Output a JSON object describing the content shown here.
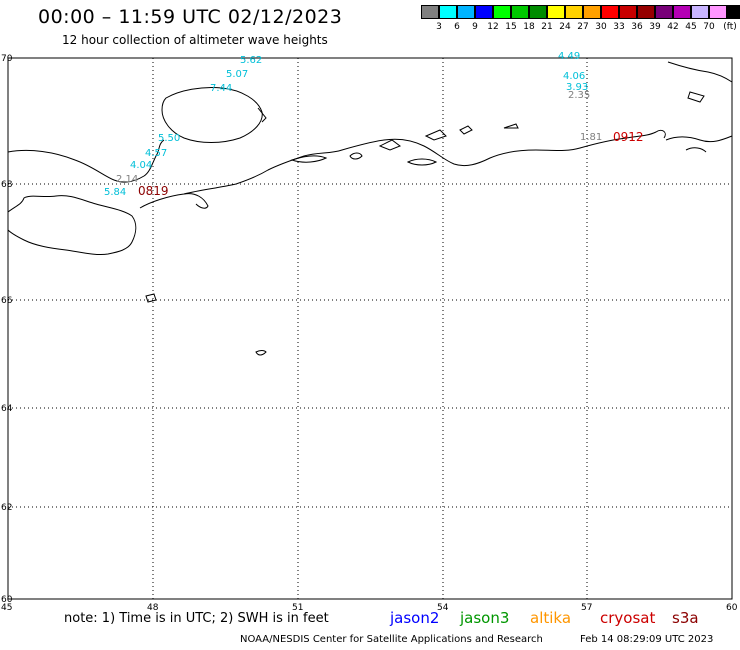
{
  "header": {
    "title": "00:00 – 11:59 UTC 02/12/2023",
    "subtitle": "12 hour collection of altimeter wave heights"
  },
  "legend": {
    "unit": "(ft)",
    "items": [
      {
        "label": "",
        "color": "#808080"
      },
      {
        "label": "3",
        "color": "#00ffff"
      },
      {
        "label": "6",
        "color": "#00b4ff"
      },
      {
        "label": "9",
        "color": "#0000ff"
      },
      {
        "label": "12",
        "color": "#00ff00"
      },
      {
        "label": "15",
        "color": "#00c800"
      },
      {
        "label": "18",
        "color": "#008c00"
      },
      {
        "label": "21",
        "color": "#ffff00"
      },
      {
        "label": "24",
        "color": "#ffd200"
      },
      {
        "label": "27",
        "color": "#ffa000"
      },
      {
        "label": "30",
        "color": "#ff0000"
      },
      {
        "label": "33",
        "color": "#c80000"
      },
      {
        "label": "36",
        "color": "#960000"
      },
      {
        "label": "39",
        "color": "#780078"
      },
      {
        "label": "42",
        "color": "#b400b4"
      },
      {
        "label": "45",
        "color": "#c8b4ff"
      },
      {
        "label": "70",
        "color": "#ff96ff"
      },
      {
        "label": "",
        "color": "#000000"
      }
    ]
  },
  "map": {
    "lon_labels": [
      "45",
      "48",
      "51",
      "54",
      "57",
      "60"
    ],
    "lat_labels": [
      "70",
      "68",
      "66",
      "64",
      "62",
      "60"
    ],
    "observations": [
      {
        "text": "5.62",
        "color": "#00bfd8"
      },
      {
        "text": "5.07",
        "color": "#00bfd8"
      },
      {
        "text": "7.44",
        "color": "#00bfd8"
      },
      {
        "text": "5.50",
        "color": "#00bfd8"
      },
      {
        "text": "4.57",
        "color": "#00bfd8"
      },
      {
        "text": "4.04",
        "color": "#00bfd8"
      },
      {
        "text": "2.14",
        "color": "#808080"
      },
      {
        "text": "5.84",
        "color": "#00bfd8"
      },
      {
        "text": "4.49",
        "color": "#00bfd8"
      },
      {
        "text": "4.06",
        "color": "#00bfd8"
      },
      {
        "text": "3.93",
        "color": "#00bfd8"
      },
      {
        "text": "2.35",
        "color": "#808080"
      },
      {
        "text": "1.81",
        "color": "#808080"
      }
    ],
    "pass_times": [
      {
        "text": "0819",
        "color": "#8b0000"
      },
      {
        "text": "0912",
        "color": "#cc0000"
      }
    ]
  },
  "footer": {
    "note": "note: 1) Time is in UTC; 2) SWH is in feet",
    "satellites": [
      {
        "name": "jason2",
        "color": "#0000ff"
      },
      {
        "name": "jason3",
        "color": "#009600"
      },
      {
        "name": "altika",
        "color": "#ff9600"
      },
      {
        "name": "cryosat",
        "color": "#cc0000"
      },
      {
        "name": "s3a",
        "color": "#8b0000"
      }
    ],
    "credit": "NOAA/NESDIS Center for Satellite Applications and Research",
    "generated": "Feb 14 08:29:09 UTC 2023"
  }
}
